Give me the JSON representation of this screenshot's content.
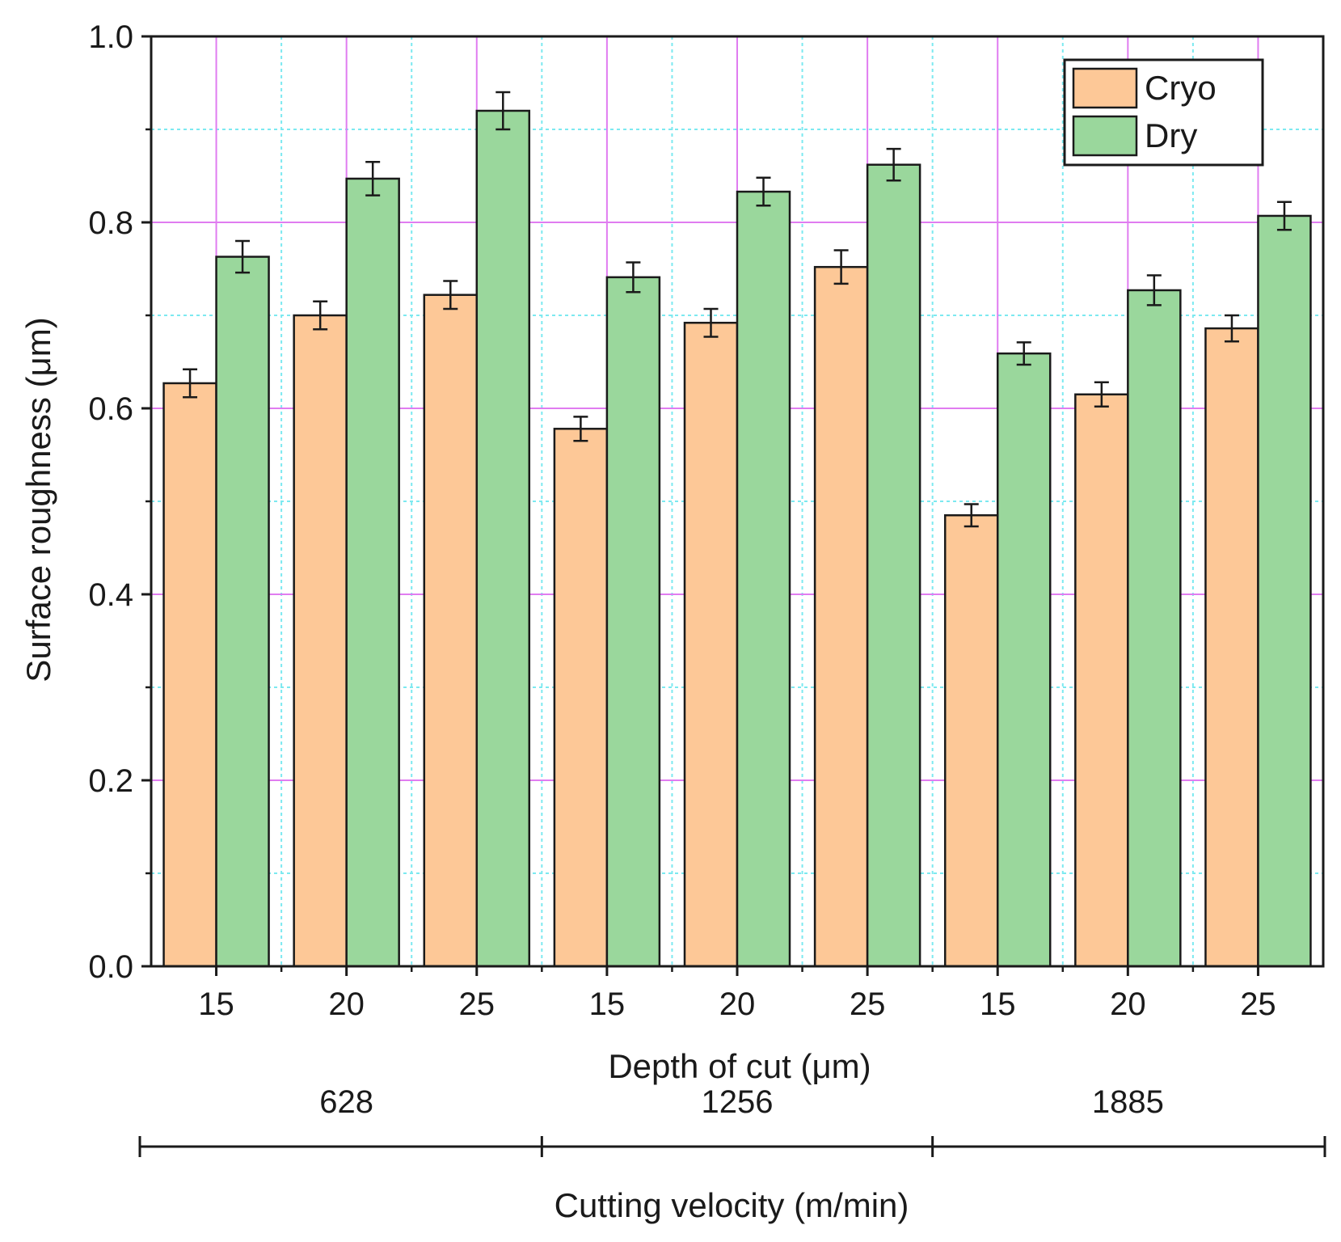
{
  "chart_data": {
    "type": "bar",
    "ylabel": "Surface roughness (μm)",
    "xlabel": "Depth of cut (μm)",
    "ylim": [
      0,
      1.0
    ],
    "yticks": [
      "0.0",
      "0.2",
      "0.4",
      "0.6",
      "0.8",
      "1.0"
    ],
    "categories": [
      "15",
      "20",
      "25",
      "15",
      "20",
      "25",
      "15",
      "20",
      "25"
    ],
    "groups": {
      "label": "Cutting velocity (m/min)",
      "items": [
        {
          "label": "628",
          "span": [
            0,
            2
          ]
        },
        {
          "label": "1256",
          "span": [
            3,
            5
          ]
        },
        {
          "label": "1885",
          "span": [
            6,
            8
          ]
        }
      ]
    },
    "series": [
      {
        "name": "Cryo",
        "color": "#FDC897",
        "values": [
          0.627,
          0.7,
          0.722,
          0.578,
          0.692,
          0.752,
          0.485,
          0.615,
          0.686
        ],
        "errors": [
          0.015,
          0.015,
          0.015,
          0.013,
          0.015,
          0.018,
          0.012,
          0.013,
          0.014
        ]
      },
      {
        "name": "Dry",
        "color": "#9AD79C",
        "values": [
          0.763,
          0.847,
          0.92,
          0.741,
          0.833,
          0.862,
          0.659,
          0.727,
          0.807
        ],
        "errors": [
          0.017,
          0.018,
          0.02,
          0.016,
          0.015,
          0.017,
          0.012,
          0.016,
          0.015
        ]
      }
    ],
    "legend": {
      "position": "top-right"
    },
    "grid": {
      "major_color": "#E07CF0",
      "minor_color": "#7CE9F0",
      "on": true
    }
  }
}
